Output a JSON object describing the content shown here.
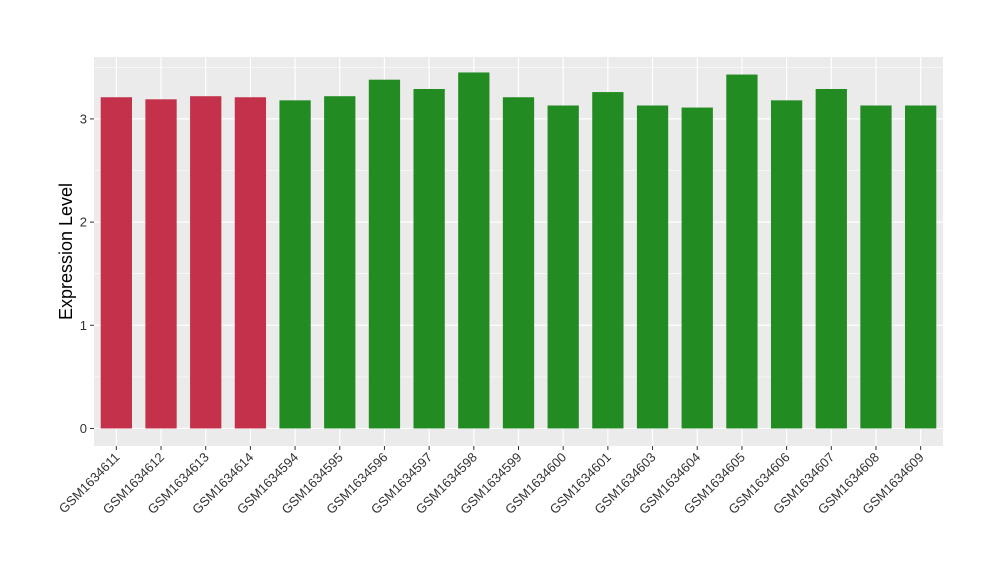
{
  "chart_data": {
    "type": "bar",
    "title": "",
    "xlabel": "",
    "ylabel": "Expression Level",
    "ylim": [
      -0.17,
      3.6
    ],
    "yticks": [
      0,
      1,
      2,
      3
    ],
    "grid": true,
    "categories": [
      "GSM1634611",
      "GSM1634612",
      "GSM1634613",
      "GSM1634614",
      "GSM1634594",
      "GSM1634595",
      "GSM1634596",
      "GSM1634597",
      "GSM1634598",
      "GSM1634599",
      "GSM1634600",
      "GSM1634601",
      "GSM1634603",
      "GSM1634604",
      "GSM1634605",
      "GSM1634606",
      "GSM1634607",
      "GSM1634608",
      "GSM1634609"
    ],
    "values": [
      3.21,
      3.19,
      3.22,
      3.21,
      3.18,
      3.22,
      3.38,
      3.29,
      3.45,
      3.21,
      3.13,
      3.26,
      3.13,
      3.11,
      3.43,
      3.18,
      3.29,
      3.13,
      3.13
    ],
    "bar_colors": [
      "#C4314B",
      "#C4314B",
      "#C4314B",
      "#C4314B",
      "#228B22",
      "#228B22",
      "#228B22",
      "#228B22",
      "#228B22",
      "#228B22",
      "#228B22",
      "#228B22",
      "#228B22",
      "#228B22",
      "#228B22",
      "#228B22",
      "#228B22",
      "#228B22",
      "#228B22"
    ],
    "panel_color": "#EBEBEB",
    "grid_color": "#FFFFFF"
  }
}
